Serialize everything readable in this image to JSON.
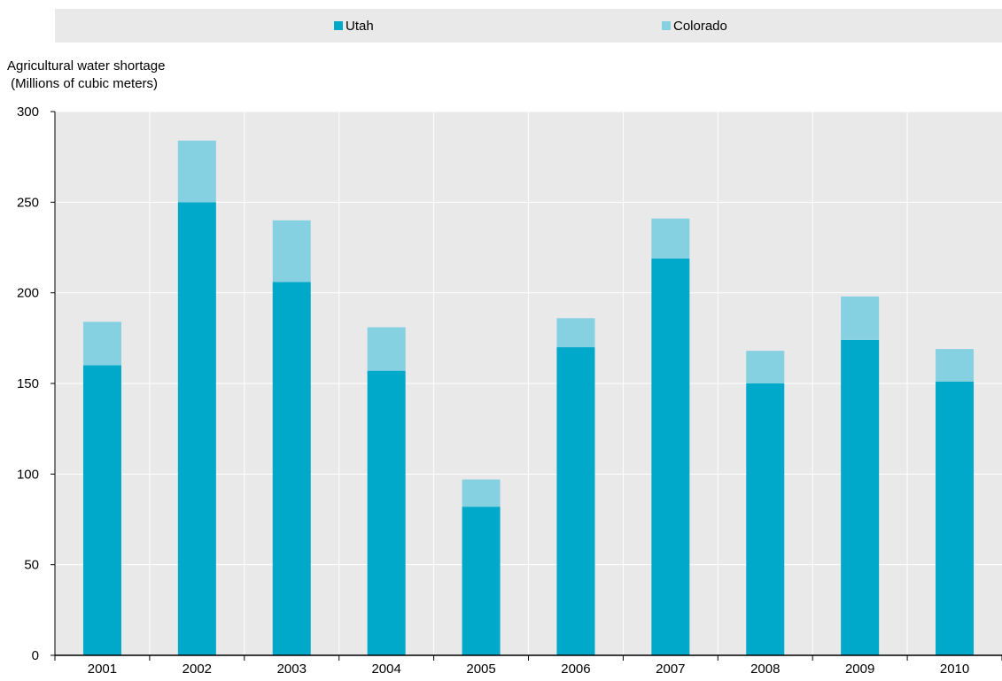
{
  "colors": {
    "utah": "#00a8c9",
    "colorado": "#85d0e1",
    "plot_bg": "#e9e9e9",
    "gridline": "#ffffff",
    "axis": "#000000"
  },
  "legend": {
    "utah_label": "Utah",
    "colorado_label": "Colorado"
  },
  "y_axis_title_line1": "Agricultural water shortage",
  "y_axis_title_line2": " (Millions of cubic meters)",
  "chart_data": {
    "type": "bar",
    "stacked": true,
    "categories": [
      "2001",
      "2002",
      "2003",
      "2004",
      "2005",
      "2006",
      "2007",
      "2008",
      "2009",
      "2010"
    ],
    "series": [
      {
        "name": "Utah",
        "values": [
          160,
          250,
          206,
          157,
          82,
          170,
          219,
          150,
          174,
          151
        ]
      },
      {
        "name": "Colorado",
        "values": [
          24,
          34,
          34,
          24,
          15,
          16,
          22,
          18,
          24,
          18
        ]
      }
    ],
    "ylim": [
      0,
      300
    ],
    "yticks": [
      0,
      50,
      100,
      150,
      200,
      250,
      300
    ],
    "ylabel": "Agricultural water shortage (Millions of cubic meters)",
    "xlabel": "",
    "grid": true,
    "legend_position": "top"
  }
}
